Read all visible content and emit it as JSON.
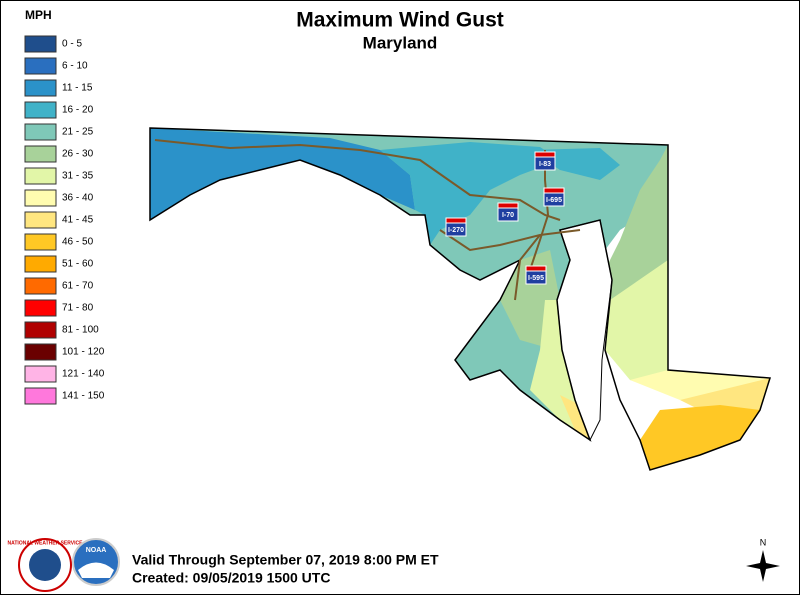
{
  "header": {
    "title": "Maximum Wind Gust",
    "subtitle": "Maryland"
  },
  "legend": {
    "title": "MPH",
    "items": [
      {
        "label": "0 - 5",
        "color": "#1f4e8c"
      },
      {
        "label": "6 - 10",
        "color": "#2a6fbf"
      },
      {
        "label": "11 - 15",
        "color": "#2b92c9"
      },
      {
        "label": "16 - 20",
        "color": "#40b2c8"
      },
      {
        "label": "21 - 25",
        "color": "#7fc8b8"
      },
      {
        "label": "26 - 30",
        "color": "#a8d29a"
      },
      {
        "label": "31 - 35",
        "color": "#e2f6a8"
      },
      {
        "label": "36 - 40",
        "color": "#fffcb0"
      },
      {
        "label": "41 - 45",
        "color": "#ffe680"
      },
      {
        "label": "46 - 50",
        "color": "#ffc825"
      },
      {
        "label": "51 - 60",
        "color": "#ffaa00"
      },
      {
        "label": "61 - 70",
        "color": "#ff6a00"
      },
      {
        "label": "71 - 80",
        "color": "#ff0000"
      },
      {
        "label": "81 - 100",
        "color": "#b00000"
      },
      {
        "label": "101 - 120",
        "color": "#6a0000"
      },
      {
        "label": "121 - 140",
        "color": "#ffb4e6"
      },
      {
        "label": "141 - 150",
        "color": "#ff78dc"
      }
    ]
  },
  "highways": [
    "I-83",
    "I-695",
    "I-70",
    "I-270",
    "I-595"
  ],
  "footer": {
    "valid": "Valid Through September 07, 2019 8:00 PM ET",
    "created": "Created: 09/05/2019 1500 UTC"
  },
  "logos": {
    "nws": "NATIONAL WEATHER SERVICE",
    "noaa": "NOAA"
  },
  "compass": "N"
}
